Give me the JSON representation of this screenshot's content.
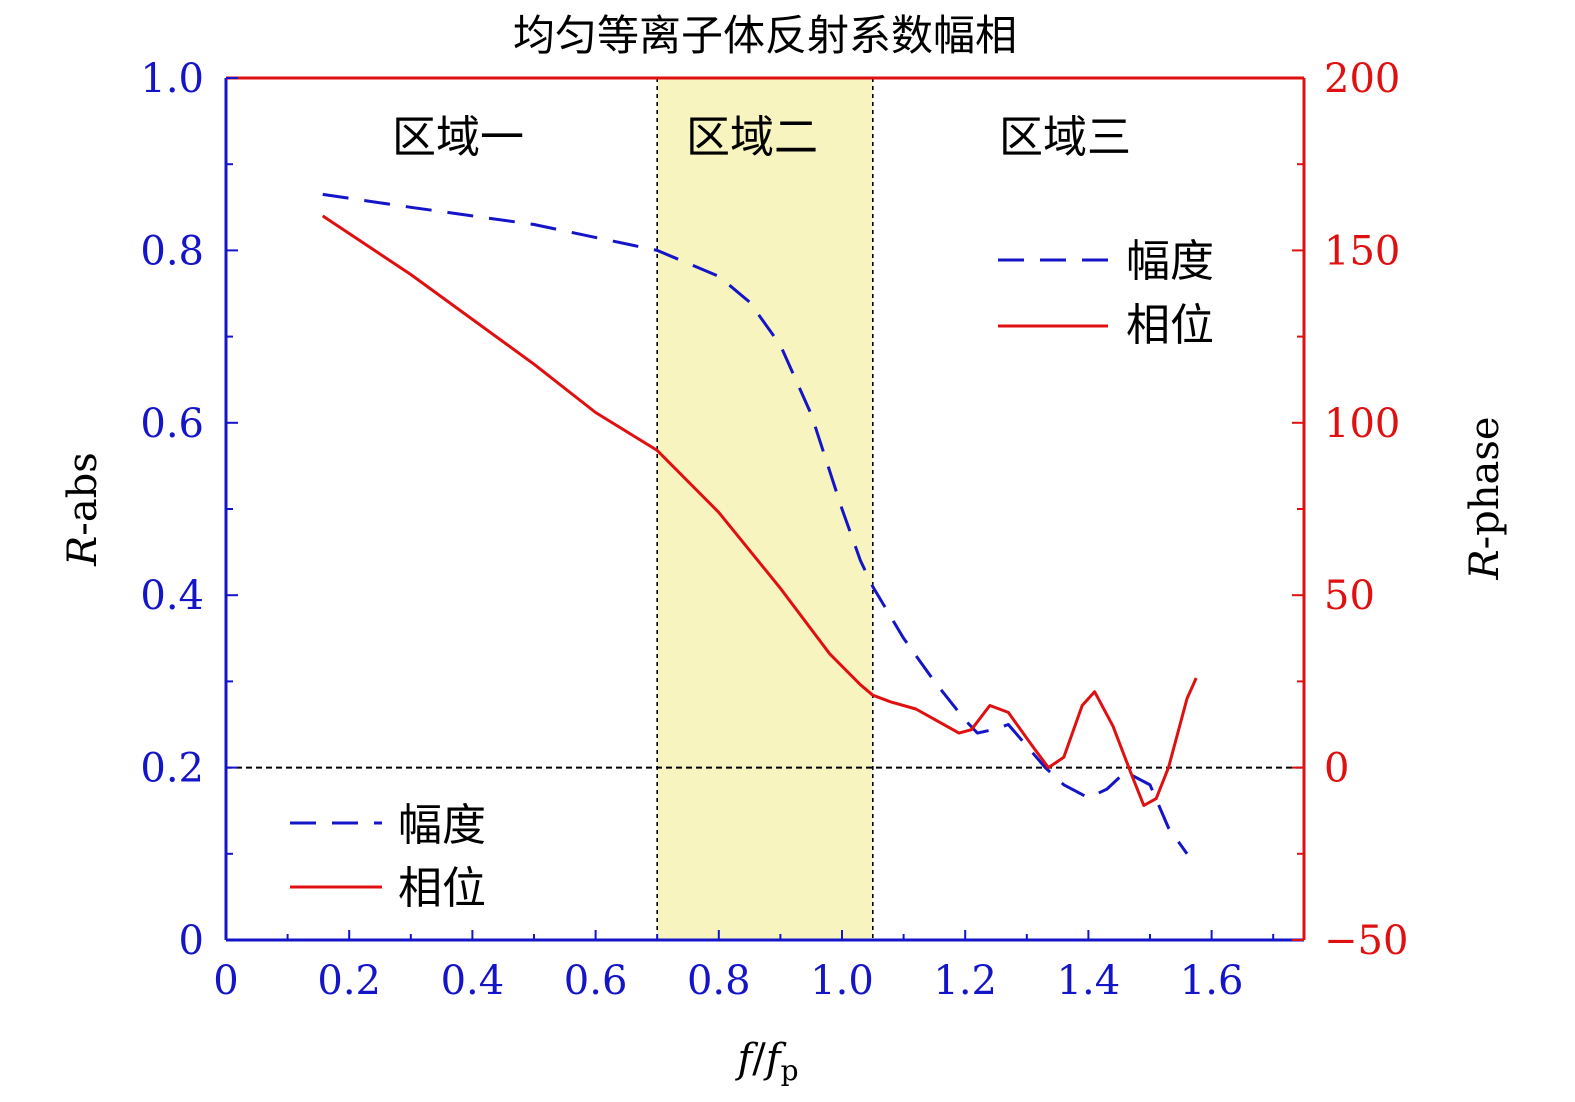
{
  "chart_data": {
    "type": "line",
    "title": "均匀等离子体反射系数幅相",
    "xlabel": {
      "main": "f",
      "slash": "/",
      "sub_base": "f",
      "sub": "p"
    },
    "ylabel_left": {
      "italic": "R",
      "rest": "-abs"
    },
    "ylabel_right": {
      "italic": "R",
      "rest": "-phase"
    },
    "xlim": [
      0,
      1.75
    ],
    "ylim_left": [
      0,
      1.0
    ],
    "ylim_right": [
      -50,
      200
    ],
    "x_ticks": [
      {
        "v": 0,
        "label": "0"
      },
      {
        "v": 0.2,
        "label": "0.2"
      },
      {
        "v": 0.4,
        "label": "0.4"
      },
      {
        "v": 0.6,
        "label": "0.6"
      },
      {
        "v": 0.8,
        "label": "0.8"
      },
      {
        "v": 1.0,
        "label": "1.0"
      },
      {
        "v": 1.2,
        "label": "1.2"
      },
      {
        "v": 1.4,
        "label": "1.4"
      },
      {
        "v": 1.6,
        "label": "1.6"
      }
    ],
    "y_left_ticks": [
      {
        "v": 0,
        "label": "0"
      },
      {
        "v": 0.2,
        "label": "0.2"
      },
      {
        "v": 0.4,
        "label": "0.4"
      },
      {
        "v": 0.6,
        "label": "0.6"
      },
      {
        "v": 0.8,
        "label": "0.8"
      },
      {
        "v": 1.0,
        "label": "1.0"
      }
    ],
    "y_right_ticks": [
      {
        "v": -50,
        "label": "−50"
      },
      {
        "v": 0,
        "label": "0"
      },
      {
        "v": 50,
        "label": "50"
      },
      {
        "v": 100,
        "label": "100"
      },
      {
        "v": 150,
        "label": "150"
      },
      {
        "v": 200,
        "label": "200"
      }
    ],
    "zones": [
      {
        "label": "区域一",
        "x0": 0,
        "x1": 0.7
      },
      {
        "label": "区域二",
        "x0": 0.7,
        "x1": 1.05,
        "shaded": true,
        "color": "#f8f4c0"
      },
      {
        "label": "区域三",
        "x0": 1.05,
        "x1": 1.75
      }
    ],
    "reference_line_left_y": 0.2,
    "series": [
      {
        "name": "幅度",
        "axis": "left",
        "style": "dashed",
        "color": "#1414c8",
        "x": [
          0.157,
          0.3,
          0.5,
          0.7,
          0.8,
          0.85,
          0.9,
          0.95,
          1.0,
          1.03,
          1.05,
          1.1,
          1.15,
          1.2,
          1.22,
          1.25,
          1.27,
          1.3,
          1.33,
          1.36,
          1.4,
          1.43,
          1.46,
          1.5,
          1.53,
          1.56
        ],
        "y": [
          0.865,
          0.85,
          0.83,
          0.8,
          0.77,
          0.74,
          0.69,
          0.61,
          0.5,
          0.44,
          0.41,
          0.35,
          0.3,
          0.255,
          0.24,
          0.245,
          0.25,
          0.225,
          0.2,
          0.18,
          0.165,
          0.175,
          0.195,
          0.18,
          0.13,
          0.1
        ]
      },
      {
        "name": "相位",
        "axis": "right",
        "style": "solid",
        "color": "#e01010",
        "x": [
          0.157,
          0.3,
          0.5,
          0.6,
          0.7,
          0.8,
          0.9,
          0.98,
          1.03,
          1.05,
          1.08,
          1.12,
          1.15,
          1.19,
          1.21,
          1.24,
          1.27,
          1.31,
          1.335,
          1.36,
          1.39,
          1.41,
          1.44,
          1.47,
          1.49,
          1.51,
          1.53,
          1.56,
          1.575
        ],
        "y": [
          160,
          143,
          117,
          103,
          92,
          74,
          52,
          33,
          24,
          21,
          19,
          17,
          14,
          10,
          11,
          18,
          16,
          6,
          0,
          3,
          18,
          22,
          12,
          -2,
          -11,
          -9,
          0,
          20,
          26
        ]
      }
    ],
    "legends": [
      {
        "position": "top-right",
        "entries": [
          "幅度",
          "相位"
        ]
      },
      {
        "position": "bottom-left",
        "entries": [
          "幅度",
          "相位"
        ]
      }
    ]
  }
}
